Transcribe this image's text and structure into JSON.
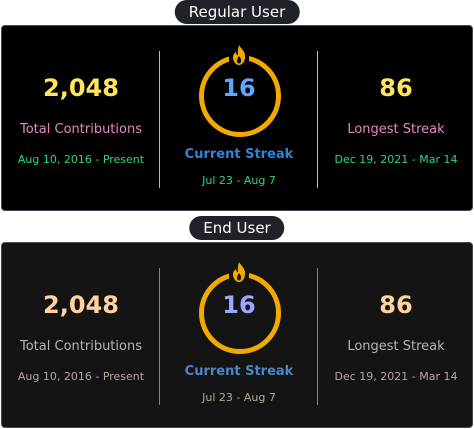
{
  "sections": [
    {
      "heading": "Regular User",
      "total": {
        "value": "2,048",
        "label": "Total Contributions",
        "range": "Aug 10, 2016 - Present"
      },
      "current": {
        "value": "16",
        "label": "Current Streak",
        "range": "Jul 23 - Aug 7"
      },
      "longest": {
        "value": "86",
        "label": "Longest Streak",
        "range": "Dec 19, 2021 - Mar 14"
      }
    },
    {
      "heading": "End User",
      "total": {
        "value": "2,048",
        "label": "Total Contributions",
        "range": "Aug 10, 2016 - Present"
      },
      "current": {
        "value": "16",
        "label": "Current Streak",
        "range": "Jul 23 - Aug 7"
      },
      "longest": {
        "value": "86",
        "label": "Longest Streak",
        "range": "Dec 19, 2021 - Mar 14"
      }
    }
  ],
  "colors": {
    "regular": {
      "total_value": "#ffe55c",
      "total_label": "#e887c9",
      "total_range": "#2bd87a",
      "ring": "#f2a900",
      "current_value": "#5aa8ff",
      "current_label": "#2f85d8",
      "current_range": "#2bd87a",
      "longest_value": "#ffe55c",
      "longest_label": "#e887c9",
      "longest_range": "#2bd87a"
    },
    "end": {
      "total_value": "#ffd29e",
      "total_label": "#b5b5b5",
      "total_range": "#b5a899",
      "ring": "#f2a900",
      "current_value": "#9aa8ff",
      "current_label": "#4c86c8",
      "current_range": "#b5a899",
      "longest_value": "#ffd29e",
      "longest_label": "#b5b5b5",
      "longest_range": "#b5a899"
    }
  },
  "icons": {
    "streak": "flame-icon"
  }
}
